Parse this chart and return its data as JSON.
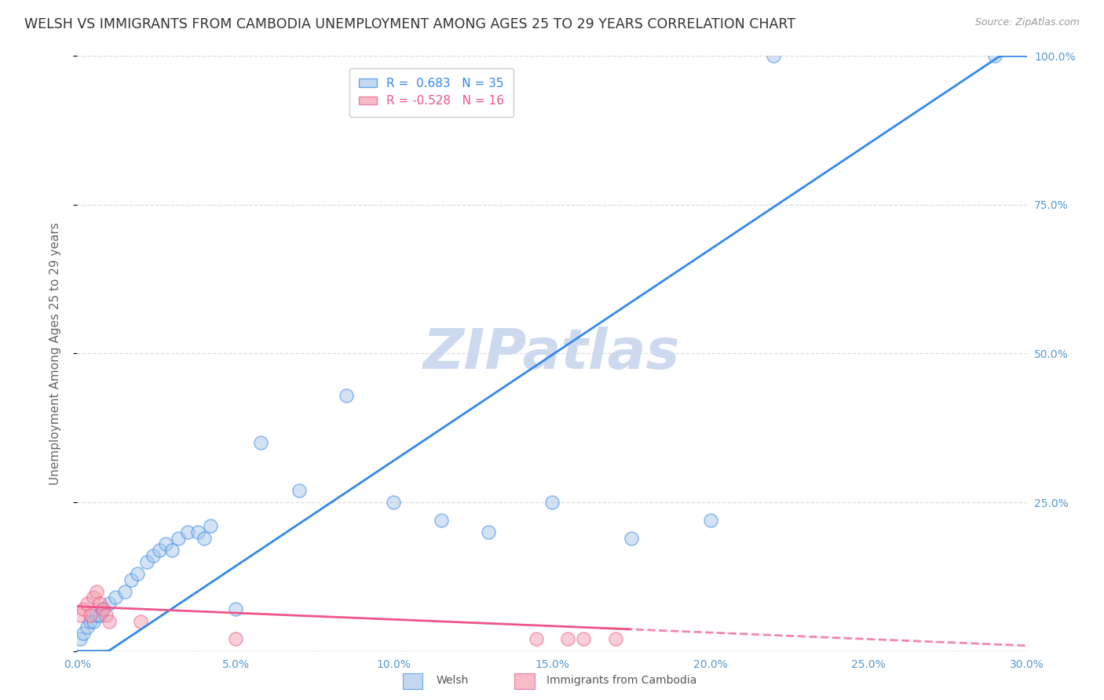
{
  "title": "WELSH VS IMMIGRANTS FROM CAMBODIA UNEMPLOYMENT AMONG AGES 25 TO 29 YEARS CORRELATION CHART",
  "source": "Source: ZipAtlas.com",
  "ylabel": "Unemployment Among Ages 25 to 29 years",
  "xlim": [
    0.0,
    0.3
  ],
  "ylim": [
    0.0,
    1.0
  ],
  "xticks": [
    0.0,
    0.05,
    0.1,
    0.15,
    0.2,
    0.25,
    0.3
  ],
  "xticklabels": [
    "0.0%",
    "5.0%",
    "10.0%",
    "15.0%",
    "20.0%",
    "25.0%",
    "30.0%"
  ],
  "yticks": [
    0.0,
    0.25,
    0.5,
    0.75,
    1.0
  ],
  "yticklabels": [
    "",
    "25.0%",
    "50.0%",
    "75.0%",
    "100.0%"
  ],
  "welsh_color": "#a8c8e8",
  "cambodia_color": "#f4a0b0",
  "welsh_R": 0.683,
  "welsh_N": 35,
  "cambodia_R": -0.528,
  "cambodia_N": 16,
  "watermark": "ZIPatlas",
  "welsh_x": [
    0.001,
    0.002,
    0.003,
    0.004,
    0.005,
    0.006,
    0.007,
    0.008,
    0.01,
    0.012,
    0.015,
    0.017,
    0.019,
    0.022,
    0.024,
    0.026,
    0.028,
    0.03,
    0.032,
    0.035,
    0.038,
    0.04,
    0.042,
    0.05,
    0.058,
    0.07,
    0.085,
    0.1,
    0.115,
    0.13,
    0.15,
    0.175,
    0.2,
    0.22,
    0.29
  ],
  "welsh_y": [
    0.02,
    0.03,
    0.04,
    0.05,
    0.05,
    0.06,
    0.06,
    0.07,
    0.08,
    0.09,
    0.1,
    0.12,
    0.13,
    0.15,
    0.16,
    0.17,
    0.18,
    0.17,
    0.19,
    0.2,
    0.2,
    0.19,
    0.21,
    0.07,
    0.35,
    0.27,
    0.43,
    0.25,
    0.22,
    0.2,
    0.25,
    0.19,
    0.22,
    1.0,
    1.0
  ],
  "cambodia_x": [
    0.001,
    0.002,
    0.003,
    0.004,
    0.005,
    0.006,
    0.007,
    0.008,
    0.009,
    0.01,
    0.02,
    0.05,
    0.145,
    0.155,
    0.16,
    0.17
  ],
  "cambodia_y": [
    0.06,
    0.07,
    0.08,
    0.06,
    0.09,
    0.1,
    0.08,
    0.07,
    0.06,
    0.05,
    0.05,
    0.02,
    0.02,
    0.02,
    0.02,
    0.02
  ],
  "welsh_line_slope": 3.55,
  "welsh_line_intercept": -0.035,
  "cambodia_line_slope": -0.22,
  "cambodia_line_intercept": 0.075,
  "background_color": "#ffffff",
  "grid_color": "#dddddd",
  "title_fontsize": 12.5,
  "axis_label_fontsize": 11,
  "tick_fontsize": 10,
  "legend_fontsize": 11,
  "watermark_fontsize": 52,
  "watermark_color": "#ccd9ee",
  "tick_color": "#5599cc",
  "welsh_line_color": "#3388ee",
  "cambodia_line_color": "#ee5588"
}
